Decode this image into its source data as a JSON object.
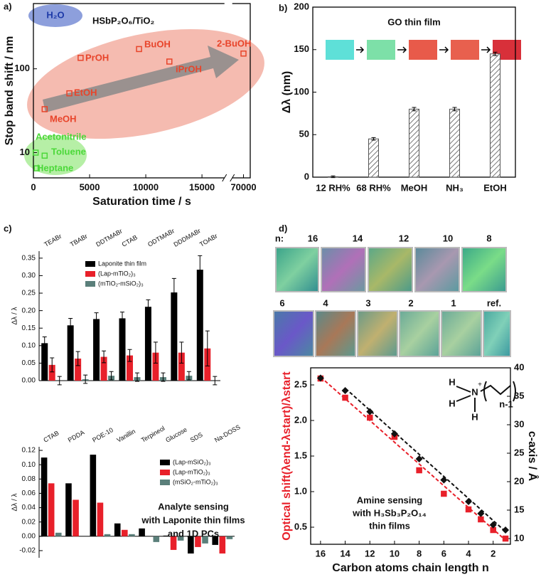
{
  "chart_data": [
    {
      "type": "scatter",
      "panel_label": "a)",
      "title": "HSbP₂O₆/TiO₂",
      "annotation": "H₂O",
      "xlabel": "Saturation time / s",
      "ylabel": "Stop band shift / nm",
      "xlim": [
        0,
        70600
      ],
      "xbreak": [
        17000,
        69000
      ],
      "xticks": [
        0,
        5000,
        10000,
        15000,
        70000
      ],
      "ylim": [
        5,
        600
      ],
      "yticks": [
        10,
        100
      ],
      "log_y": true,
      "series": [
        {
          "color": "#e8442a",
          "marker": "square",
          "x": [
            1000,
            3200,
            4200,
            9400,
            12100,
            70000
          ],
          "values": [
            33,
            51,
            135,
            172,
            122,
            152
          ],
          "labels": [
            "MeOH",
            "EtOH",
            "PrOH",
            "BuOH",
            "iPrOH",
            "2-BuOH"
          ]
        },
        {
          "color": "#4cd83a",
          "marker": "square",
          "x": [
            200,
            1000,
            300
          ],
          "values": [
            10,
            9.2,
            6.5
          ],
          "labels": [
            "Acetonitrile",
            "Toluene",
            "Heptane"
          ]
        }
      ]
    },
    {
      "type": "bar",
      "panel_label": "b)",
      "title": "GO thin film",
      "ylabel": "Δλ (nm)",
      "categories": [
        "12 RH%",
        "68 RH%",
        "MeOH",
        "NH₃",
        "EtOH"
      ],
      "values": [
        0.5,
        45,
        80,
        80,
        145
      ],
      "errors": [
        1,
        1.5,
        2,
        2,
        2
      ],
      "color": "#555555",
      "pattern": "hatch",
      "ylim": [
        0,
        200
      ],
      "yticks": [
        0,
        50,
        100,
        150,
        200
      ]
    },
    {
      "type": "bar",
      "panel_label": "c)",
      "ylabel": "Δλ / λ",
      "categories": [
        "TEABr",
        "TBABr",
        "DDTMABr",
        "CTAB",
        "ODTMABr",
        "DDDMABr",
        "TOABr"
      ],
      "series": [
        {
          "name": "Laponite thin film",
          "color": "#000000",
          "values": [
            0.107,
            0.158,
            0.176,
            0.178,
            0.211,
            0.252,
            0.317
          ],
          "errors": [
            0.018,
            0.02,
            0.018,
            0.018,
            0.02,
            0.04,
            0.04
          ]
        },
        {
          "name": "(Lap-mTiO₂)₃",
          "color": "#e8202a",
          "values": [
            0.045,
            0.063,
            0.068,
            0.072,
            0.08,
            0.08,
            0.092
          ],
          "errors": [
            0.02,
            0.02,
            0.017,
            0.017,
            0.03,
            0.03,
            0.05
          ]
        },
        {
          "name": "(mTiO₂-mSiO₂)₃",
          "color": "#5a7f7a",
          "values": [
            0.0,
            0.004,
            0.014,
            0.01,
            0.01,
            0.014,
            0.0
          ],
          "errors": [
            0.012,
            0.012,
            0.012,
            0.012,
            0.012,
            0.012,
            0.012
          ]
        }
      ],
      "ylim": [
        0,
        0.37
      ],
      "yticks": [
        {
          "value": 0,
          "label": "0.00"
        },
        0.05,
        {
          "value": 0.1,
          "label": "0.10"
        },
        0.15,
        {
          "value": 0.2,
          "label": "0.20"
        },
        0.25,
        {
          "value": 0.3,
          "label": "0.30"
        },
        0.35
      ]
    },
    {
      "type": "bar",
      "ylabel": "Δλ / λ",
      "categories": [
        "CTAB",
        "PDDA",
        "POE-10",
        "Vanillin",
        "Terpineol",
        "Glucose",
        "SDS",
        "Na-DOSS"
      ],
      "series": [
        {
          "name": "(Lap-mSiO₂)₃",
          "color": "#000000",
          "values": [
            0.11,
            0.074,
            0.114,
            0.018,
            0.011,
            0.001,
            -0.024,
            -0.012
          ]
        },
        {
          "name": "(Lap-mTiO₂)₃",
          "color": "#e8202a",
          "values": [
            0.074,
            0.051,
            0.047,
            0.009,
            0.0,
            -0.019,
            -0.015,
            -0.024
          ]
        },
        {
          "name": "(mSiO₂-mTiO₂)₃",
          "color": "#5a7f7a",
          "values": [
            0.005,
            0.0,
            0.003,
            0.003,
            -0.008,
            -0.006,
            -0.01,
            -0.004
          ]
        }
      ],
      "ylim": [
        -0.03,
        0.125
      ],
      "yticks": [
        -0.02,
        {
          "value": 0,
          "label": "0.00"
        },
        0.02,
        0.04,
        0.06,
        0.08,
        {
          "value": 0.1,
          "label": "0.10"
        },
        0.12
      ],
      "annotation": [
        "Analyte sensing",
        "with Laponite thin films",
        "and 1D PCs"
      ]
    },
    {
      "type": "scatter",
      "panel_label": "d)",
      "swatch_rows": [
        [
          "n:",
          "16",
          "14",
          "12",
          "10",
          "8"
        ],
        [
          "6",
          "4",
          "3",
          "2",
          "1",
          "ref."
        ]
      ],
      "xlabel": "Carbon atoms chain length n",
      "ylabel": "Optical shift(λend-λstart)/λstart",
      "y2label": "c-axis / Å",
      "xlim": [
        16.8,
        0.6
      ],
      "xticks": [
        16,
        14,
        12,
        10,
        8,
        6,
        4,
        2
      ],
      "ylim": [
        0.26,
        2.74
      ],
      "yticks": [
        0.5,
        {
          "value": 1,
          "label": "1.0"
        },
        1.5,
        {
          "value": 2,
          "label": "2.0"
        },
        2.5
      ],
      "y2lim": [
        9,
        40
      ],
      "y2ticks": [
        10,
        15,
        20,
        25,
        30,
        35,
        40
      ],
      "annotation": [
        "Amine sensing",
        "with H₃Sb₃P₂O₁₄",
        "thin films"
      ],
      "structure_labels": [
        "H",
        "H",
        "N",
        "+",
        "H",
        "n-1"
      ],
      "series": [
        {
          "color": "#e8202a",
          "marker": "square",
          "x": [
            16,
            14,
            12,
            10,
            8,
            6,
            4,
            3,
            2,
            1
          ],
          "values": [
            2.59,
            2.32,
            2.04,
            1.77,
            1.3,
            0.97,
            0.75,
            0.61,
            0.46,
            0.34
          ]
        },
        {
          "color": "#111111",
          "marker": "diamond",
          "axis": "y2",
          "x": [
            16,
            14,
            12,
            10,
            8,
            6,
            4,
            3,
            2,
            1
          ],
          "values": [
            38.2,
            36,
            32.3,
            28.4,
            24,
            20.3,
            16.5,
            14.4,
            12.4,
            11.5
          ]
        }
      ]
    }
  ]
}
